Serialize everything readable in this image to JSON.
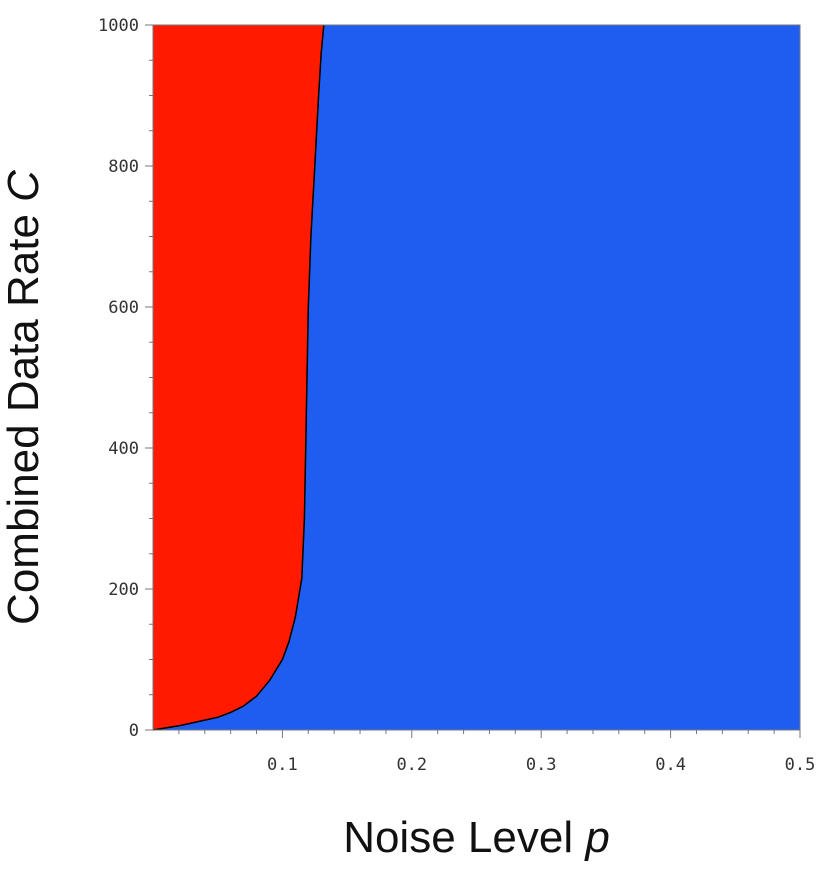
{
  "chart_data": {
    "type": "area",
    "xlabel": "Noise Level",
    "xlabel_var": "p",
    "ylabel": "Combined Data Rate",
    "ylabel_var": "C",
    "xlim": [
      0,
      0.5
    ],
    "ylim": [
      0,
      1000
    ],
    "x_ticks": [
      0.1,
      0.2,
      0.3,
      0.4,
      0.5
    ],
    "x_tick_labels": [
      "0.1",
      "0.2",
      "0.3",
      "0.4",
      "0.5"
    ],
    "y_ticks": [
      0,
      200,
      400,
      600,
      800,
      1000
    ],
    "y_tick_labels": [
      "0",
      "200",
      "400",
      "600",
      "800",
      "1000"
    ],
    "grid": false,
    "colors": {
      "left_region": "#ff1a00",
      "right_region": "#1f5cf0",
      "boundary": "#000000"
    },
    "boundary": {
      "x": [
        0.0,
        0.01,
        0.02,
        0.03,
        0.04,
        0.05,
        0.06,
        0.07,
        0.08,
        0.09,
        0.1,
        0.105,
        0.11,
        0.115,
        0.117,
        0.118,
        0.119,
        0.12,
        0.122,
        0.125,
        0.128,
        0.13,
        0.132
      ],
      "y": [
        0,
        3,
        6,
        10,
        14,
        18,
        25,
        34,
        48,
        70,
        100,
        125,
        160,
        215,
        300,
        400,
        500,
        600,
        700,
        800,
        900,
        960,
        1000
      ]
    }
  }
}
